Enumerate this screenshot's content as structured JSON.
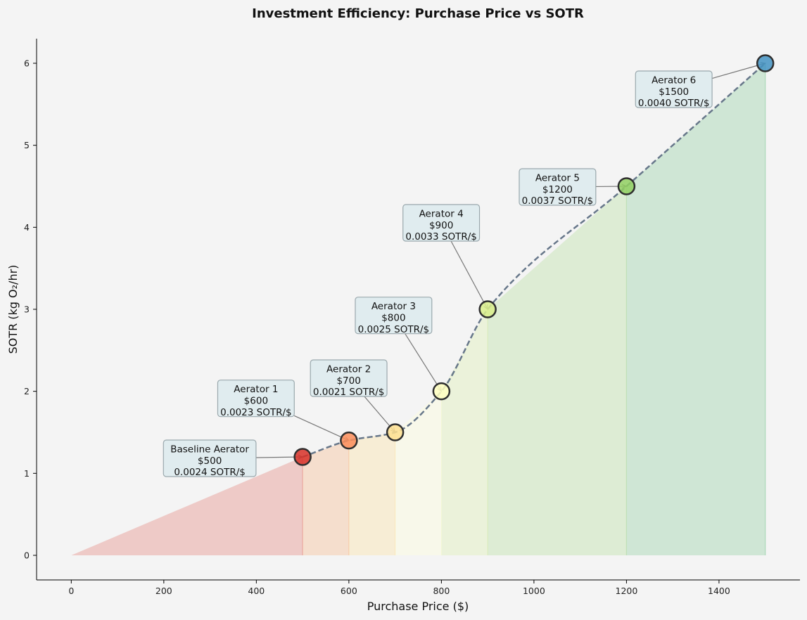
{
  "chart_data": {
    "type": "line",
    "title": "Investment Efficiency: Purchase Price vs SOTR",
    "xlabel": "Purchase Price ($)",
    "ylabel": "SOTR (kg O₂/hr)",
    "xlim": [
      -75,
      1575
    ],
    "ylim": [
      -0.3,
      6.3
    ],
    "xticks": [
      0,
      200,
      400,
      600,
      800,
      1000,
      1200,
      1400
    ],
    "yticks": [
      0,
      1,
      2,
      3,
      4,
      5,
      6
    ],
    "grid": false,
    "points": [
      {
        "name": "Baseline Aerator",
        "x": 500,
        "y": 1.2,
        "price_label": "$500",
        "efficiency_label": "0.0024 SOTR/$",
        "color": "#d73027"
      },
      {
        "name": "Aerator 1",
        "x": 600,
        "y": 1.4,
        "price_label": "$600",
        "efficiency_label": "0.0023 SOTR/$",
        "color": "#fc8d59"
      },
      {
        "name": "Aerator 2",
        "x": 700,
        "y": 1.5,
        "price_label": "$700",
        "efficiency_label": "0.0021 SOTR/$",
        "color": "#fee090"
      },
      {
        "name": "Aerator 3",
        "x": 800,
        "y": 2.0,
        "price_label": "$800",
        "efficiency_label": "0.0025 SOTR/$",
        "color": "#ffffbf"
      },
      {
        "name": "Aerator 4",
        "x": 900,
        "y": 3.0,
        "price_label": "$900",
        "efficiency_label": "0.0033 SOTR/$",
        "color": "#d9ef8b"
      },
      {
        "name": "Aerator 5",
        "x": 1200,
        "y": 4.5,
        "price_label": "$1200",
        "efficiency_label": "0.0037 SOTR/$",
        "color": "#91cf60"
      },
      {
        "name": "Aerator 6",
        "x": 1500,
        "y": 6.0,
        "price_label": "$1500",
        "efficiency_label": "0.0040 SOTR/$",
        "color": "#4393c3"
      }
    ],
    "fill_colors": [
      "#e8a09a",
      "#f6c8a6",
      "#f9e6b6",
      "#fbfbe0",
      "#e2efc0",
      "#c6e3b4",
      "#a9d7b6"
    ],
    "line_color": "#67778a"
  }
}
